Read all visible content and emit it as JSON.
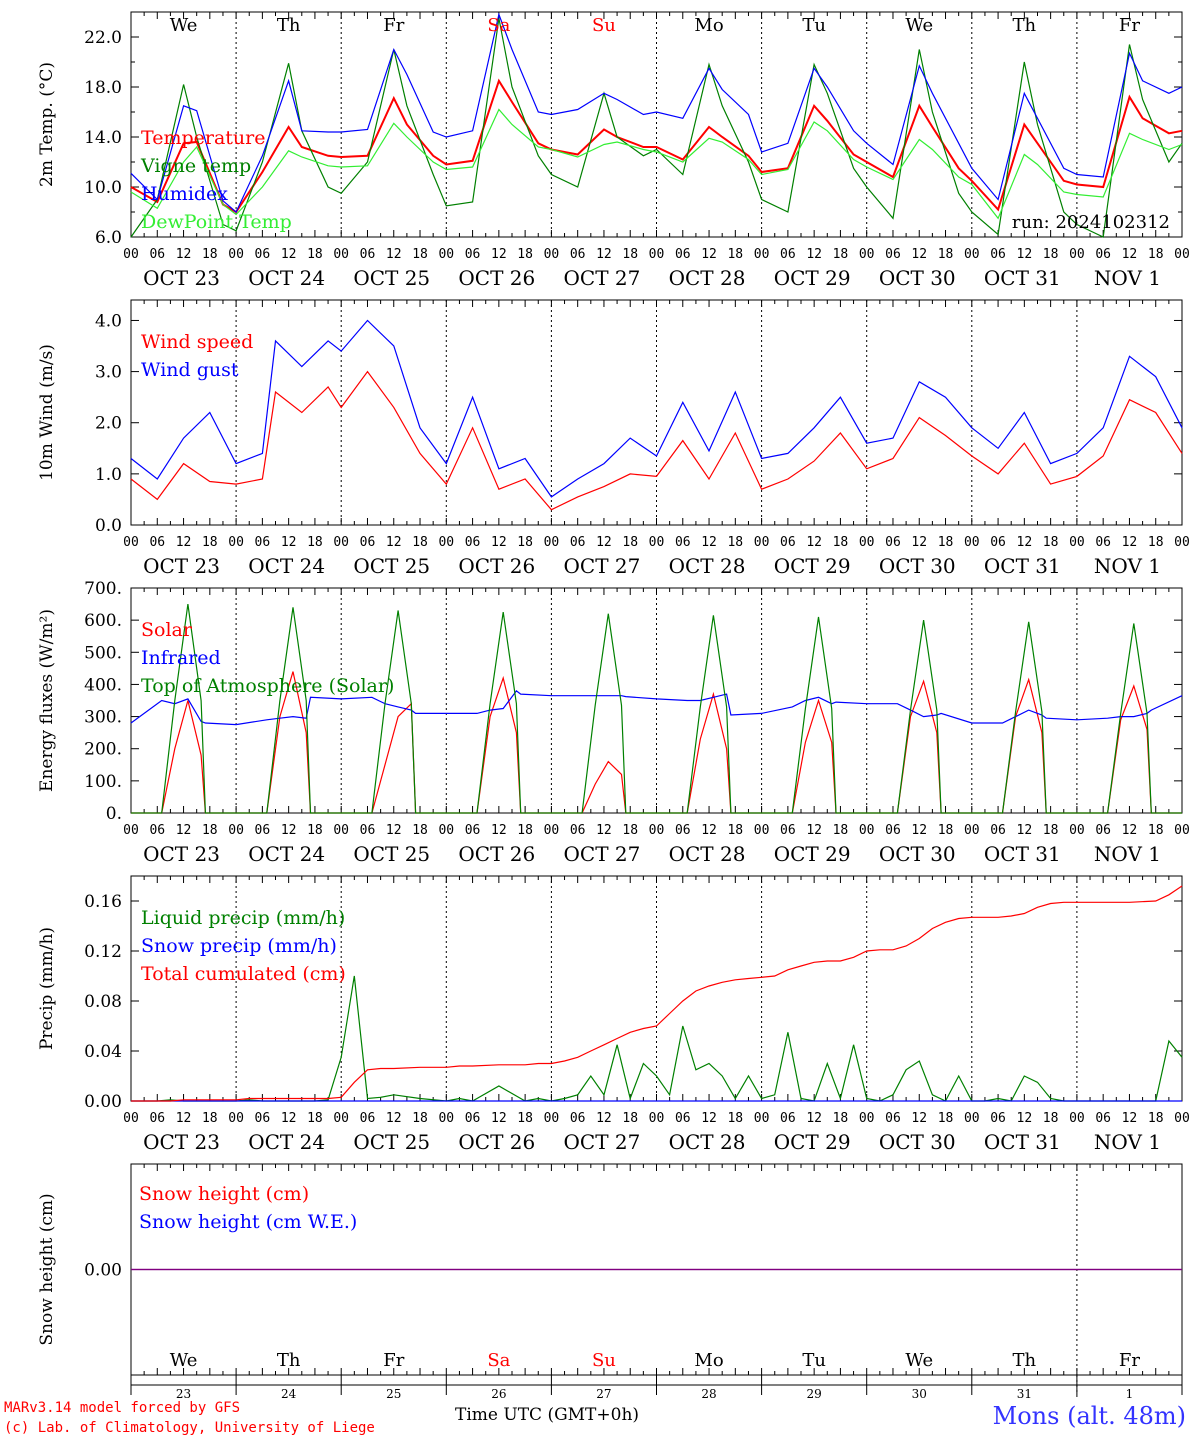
{
  "footer": {
    "model_line": "MARv3.14 model forced by GFS",
    "credit_line": "(c) Lab. of Climatology, University of Liege",
    "axis_title": "Time UTC (GMT+0h)",
    "location": "Mons (alt. 48m)"
  },
  "colors": {
    "red": "#ff0000",
    "green": "#008000",
    "blue": "#0000ff",
    "lightgreen": "#33ee33",
    "purple": "#800080"
  },
  "chart_data": [
    {
      "id": "temp",
      "type": "line",
      "ylabel": "2m Temp. (°C)",
      "ylim": [
        6,
        24
      ],
      "yticks": [
        6,
        10,
        14,
        18,
        22
      ],
      "ytick_labels": [
        "6.0",
        "10.0",
        "14.0",
        "18.0",
        "22.0"
      ],
      "annotation": "run: 2024102312",
      "day_names": [
        "We",
        "Th",
        "Fr",
        "Sa",
        "Su",
        "Mo",
        "Tu",
        "We",
        "Th",
        "Fr"
      ],
      "x_hours": [
        0,
        6,
        12,
        15,
        21,
        24,
        30,
        36,
        39,
        45,
        48,
        54,
        60,
        63,
        69,
        72,
        78,
        84,
        87,
        93,
        96,
        102,
        108,
        111,
        117,
        120,
        126,
        132,
        135,
        141,
        144,
        150,
        156,
        159,
        165,
        168,
        174,
        180,
        183,
        189,
        192,
        198,
        204,
        207,
        213,
        216,
        222,
        228,
        231,
        237,
        240
      ],
      "series": [
        {
          "name": "Temperature",
          "color": "#ff0000",
          "values": [
            10.0,
            8.8,
            13.5,
            13.6,
            8.6,
            8.0,
            11.2,
            14.8,
            13.2,
            12.5,
            12.4,
            12.5,
            17.1,
            15.0,
            12.5,
            11.8,
            12.1,
            18.5,
            16.8,
            13.5,
            13.0,
            12.6,
            14.6,
            14.0,
            13.2,
            13.2,
            12.2,
            14.8,
            14.0,
            12.5,
            11.2,
            11.5,
            16.5,
            15.3,
            12.6,
            12.0,
            10.8,
            16.5,
            14.8,
            11.5,
            10.5,
            8.2,
            15.0,
            13.5,
            10.5,
            10.2,
            10.0,
            17.2,
            15.5,
            14.3,
            14.5
          ]
        },
        {
          "name": "Vigne temp",
          "color": "#008000",
          "values": [
            6.0,
            9.0,
            18.2,
            14.0,
            7.0,
            6.5,
            12.0,
            19.9,
            14.5,
            10.0,
            9.5,
            12.0,
            21.0,
            16.5,
            11.0,
            8.5,
            8.8,
            23.5,
            18.0,
            12.5,
            11.0,
            10.0,
            17.5,
            14.0,
            12.5,
            13.0,
            11.0,
            19.8,
            16.5,
            12.0,
            9.0,
            8.0,
            19.8,
            17.5,
            11.5,
            10.0,
            7.5,
            21.0,
            16.0,
            9.5,
            8.0,
            6.2,
            20.0,
            15.0,
            8.0,
            7.0,
            6.0,
            21.4,
            17.0,
            12.0,
            13.5
          ]
        },
        {
          "name": "Humidex",
          "color": "#0000ff",
          "values": [
            11.1,
            9.0,
            16.5,
            16.1,
            8.9,
            8.0,
            12.5,
            18.5,
            14.5,
            14.4,
            14.4,
            14.6,
            21.0,
            19.0,
            14.4,
            14.0,
            14.5,
            23.8,
            21.0,
            16.0,
            15.8,
            16.2,
            17.5,
            17.0,
            15.8,
            16.0,
            15.5,
            19.5,
            17.8,
            15.8,
            12.8,
            13.5,
            19.5,
            18.0,
            14.5,
            13.5,
            11.8,
            19.7,
            17.5,
            13.5,
            11.5,
            9.0,
            17.5,
            15.5,
            11.5,
            11.0,
            10.8,
            20.7,
            18.5,
            17.5,
            18.0
          ]
        },
        {
          "name": "DewPoint Temp",
          "color": "#33ee33",
          "values": [
            9.6,
            8.3,
            12.0,
            13.2,
            8.6,
            7.8,
            10.0,
            12.9,
            12.4,
            11.7,
            11.6,
            11.7,
            15.1,
            14.0,
            12.0,
            11.4,
            11.6,
            16.2,
            15.0,
            13.2,
            13.0,
            12.4,
            13.4,
            13.6,
            13.0,
            12.8,
            12.0,
            13.9,
            13.6,
            12.2,
            11.0,
            11.4,
            15.2,
            14.5,
            12.2,
            11.6,
            10.6,
            13.8,
            13.0,
            10.8,
            10.2,
            7.5,
            12.6,
            11.8,
            9.6,
            9.4,
            9.2,
            14.3,
            13.8,
            13.0,
            13.4
          ]
        }
      ]
    },
    {
      "id": "wind",
      "type": "line",
      "ylabel": "10m Wind (m/s)",
      "ylim": [
        0,
        4.4
      ],
      "yticks": [
        0,
        1,
        2,
        3,
        4
      ],
      "ytick_labels": [
        "0.0",
        "1.0",
        "2.0",
        "3.0",
        "4.0"
      ],
      "x_hours": [
        0,
        6,
        12,
        18,
        24,
        30,
        33,
        39,
        45,
        48,
        54,
        60,
        66,
        72,
        78,
        84,
        90,
        96,
        102,
        108,
        114,
        120,
        126,
        132,
        138,
        144,
        150,
        156,
        162,
        168,
        174,
        180,
        186,
        192,
        198,
        204,
        210,
        216,
        222,
        228,
        234,
        240
      ],
      "series": [
        {
          "name": "Wind speed",
          "color": "#ff0000",
          "values": [
            0.9,
            0.5,
            1.2,
            0.85,
            0.8,
            0.9,
            2.6,
            2.2,
            2.7,
            2.3,
            3.0,
            2.3,
            1.4,
            0.8,
            1.9,
            0.7,
            0.9,
            0.3,
            0.55,
            0.75,
            1.0,
            0.95,
            1.65,
            0.9,
            1.8,
            0.7,
            0.9,
            1.25,
            1.8,
            1.1,
            1.3,
            2.1,
            1.75,
            1.35,
            1.0,
            1.6,
            0.8,
            0.95,
            1.35,
            2.45,
            2.2,
            1.4
          ]
        },
        {
          "name": "Wind gust",
          "color": "#0000ff",
          "values": [
            1.3,
            0.9,
            1.7,
            2.2,
            1.2,
            1.4,
            3.6,
            3.1,
            3.6,
            3.4,
            4.0,
            3.5,
            1.9,
            1.2,
            2.5,
            1.1,
            1.3,
            0.55,
            0.9,
            1.2,
            1.7,
            1.35,
            2.4,
            1.45,
            2.6,
            1.3,
            1.4,
            1.9,
            2.5,
            1.6,
            1.7,
            2.8,
            2.5,
            1.9,
            1.5,
            2.2,
            1.2,
            1.4,
            1.9,
            3.3,
            2.9,
            1.9
          ]
        }
      ]
    },
    {
      "id": "energy",
      "type": "line",
      "ylabel": "Energy fluxes (W/m²)",
      "ylim": [
        0,
        700
      ],
      "yticks": [
        0,
        100,
        200,
        300,
        400,
        500,
        600,
        700
      ],
      "ytick_labels": [
        "0.",
        "100.",
        "200.",
        "300.",
        "400.",
        "500.",
        "600.",
        "700."
      ],
      "x_hours": [
        0,
        7,
        10,
        13,
        16,
        17,
        24,
        31,
        34,
        37,
        40,
        41,
        48,
        55,
        58,
        61,
        64,
        65,
        72,
        79,
        82,
        85,
        88,
        89,
        96,
        103,
        106,
        109,
        112,
        113,
        120,
        127,
        130,
        133,
        136,
        137,
        144,
        151,
        154,
        157,
        160,
        161,
        168,
        175,
        178,
        181,
        184,
        185,
        192,
        199,
        202,
        205,
        208,
        209,
        216,
        223,
        226,
        229,
        232,
        233,
        240
      ],
      "series": [
        {
          "name": "Solar",
          "color": "#ff0000",
          "values": [
            0,
            0,
            200,
            350,
            180,
            0,
            0,
            0,
            300,
            440,
            250,
            0,
            0,
            0,
            150,
            300,
            340,
            0,
            0,
            0,
            300,
            420,
            250,
            0,
            0,
            0,
            90,
            160,
            120,
            0,
            0,
            0,
            230,
            370,
            200,
            0,
            0,
            0,
            220,
            350,
            220,
            0,
            0,
            0,
            300,
            410,
            250,
            0,
            0,
            0,
            300,
            415,
            250,
            0,
            0,
            0,
            290,
            395,
            260,
            0,
            0
          ]
        },
        {
          "name": "Infrared",
          "color": "#0000ff",
          "values": [
            280,
            350,
            340,
            355,
            285,
            280,
            275,
            290,
            295,
            300,
            295,
            360,
            355,
            360,
            340,
            330,
            320,
            310,
            310,
            310,
            320,
            325,
            380,
            370,
            365,
            365,
            365,
            365,
            365,
            362,
            355,
            350,
            350,
            360,
            370,
            305,
            310,
            330,
            350,
            360,
            340,
            345,
            340,
            340,
            320,
            300,
            305,
            310,
            280,
            280,
            300,
            320,
            305,
            295,
            290,
            295,
            300,
            300,
            310,
            320,
            365
          ]
        },
        {
          "name": "Top of Atmosphere (Solar)",
          "color": "#008000",
          "values": [
            0,
            0,
            350,
            650,
            350,
            0,
            0,
            0,
            350,
            640,
            350,
            0,
            0,
            0,
            340,
            630,
            340,
            0,
            0,
            0,
            340,
            625,
            340,
            0,
            0,
            0,
            335,
            620,
            335,
            0,
            0,
            0,
            330,
            615,
            330,
            0,
            0,
            0,
            325,
            610,
            325,
            0,
            0,
            0,
            320,
            600,
            320,
            0,
            0,
            0,
            315,
            595,
            315,
            0,
            0,
            0,
            310,
            590,
            310,
            0,
            0
          ]
        }
      ]
    },
    {
      "id": "precip",
      "type": "line",
      "ylabel": "Precip (mm/h)",
      "ylim": [
        0,
        0.18
      ],
      "yticks": [
        0,
        0.04,
        0.08,
        0.12,
        0.16
      ],
      "ytick_labels": [
        "0.00",
        "0.04",
        "0.08",
        "0.12",
        "0.16"
      ],
      "x_hours": [
        0,
        6,
        9,
        12,
        18,
        24,
        27,
        30,
        36,
        42,
        45,
        48,
        51,
        54,
        57,
        60,
        66,
        72,
        75,
        78,
        84,
        90,
        93,
        96,
        99,
        102,
        105,
        108,
        111,
        114,
        117,
        120,
        123,
        126,
        129,
        132,
        135,
        138,
        141,
        144,
        147,
        150,
        153,
        156,
        159,
        162,
        165,
        168,
        171,
        174,
        177,
        180,
        183,
        186,
        189,
        192,
        195,
        198,
        201,
        204,
        207,
        210,
        213,
        216,
        222,
        228,
        234,
        237,
        240
      ],
      "series": [
        {
          "name": "Liquid precip (mm/h)",
          "color": "#008000",
          "values": [
            0,
            0,
            0.001,
            0,
            0,
            0,
            0.001,
            0,
            0,
            0,
            0.001,
            0.035,
            0.1,
            0.002,
            0.003,
            0.005,
            0.002,
            0,
            0.002,
            0,
            0.012,
            0,
            0.002,
            0,
            0.002,
            0.005,
            0.02,
            0.005,
            0.045,
            0.002,
            0.03,
            0.02,
            0.005,
            0.06,
            0.025,
            0.03,
            0.02,
            0.002,
            0.02,
            0.002,
            0.005,
            0.055,
            0.002,
            0,
            0.03,
            0.002,
            0.045,
            0.002,
            0,
            0.005,
            0.025,
            0.032,
            0.005,
            0,
            0.02,
            0,
            0,
            0.002,
            0,
            0.02,
            0.015,
            0.002,
            0,
            0,
            0,
            0,
            0,
            0.048,
            0.035
          ]
        },
        {
          "name": "Snow precip (mm/h)",
          "color": "#0000ff",
          "values": [
            0,
            0,
            0,
            0,
            0,
            0,
            0,
            0,
            0,
            0,
            0,
            0,
            0,
            0,
            0,
            0,
            0,
            0,
            0,
            0,
            0,
            0,
            0,
            0,
            0,
            0,
            0,
            0,
            0,
            0,
            0,
            0,
            0,
            0,
            0,
            0,
            0,
            0,
            0,
            0,
            0,
            0,
            0,
            0,
            0,
            0,
            0,
            0,
            0,
            0,
            0,
            0,
            0,
            0,
            0,
            0,
            0,
            0,
            0,
            0,
            0,
            0,
            0,
            0,
            0,
            0,
            0,
            0,
            0
          ]
        },
        {
          "name": "Total cumulated (cm)",
          "color": "#ff0000",
          "values": [
            0,
            0,
            0,
            0.001,
            0.001,
            0.001,
            0.002,
            0.002,
            0.002,
            0.002,
            0.002,
            0.003,
            0.015,
            0.025,
            0.026,
            0.026,
            0.027,
            0.027,
            0.028,
            0.028,
            0.029,
            0.029,
            0.03,
            0.03,
            0.032,
            0.035,
            0.04,
            0.045,
            0.05,
            0.055,
            0.058,
            0.06,
            0.07,
            0.08,
            0.088,
            0.092,
            0.095,
            0.097,
            0.098,
            0.099,
            0.1,
            0.105,
            0.108,
            0.111,
            0.112,
            0.112,
            0.115,
            0.12,
            0.121,
            0.121,
            0.124,
            0.13,
            0.138,
            0.143,
            0.146,
            0.147,
            0.147,
            0.147,
            0.148,
            0.15,
            0.155,
            0.158,
            0.159,
            0.159,
            0.159,
            0.159,
            0.16,
            0.165,
            0.172
          ]
        }
      ]
    },
    {
      "id": "snow",
      "type": "line",
      "ylabel": "Snow height (cm)",
      "ylim": [
        -1,
        1
      ],
      "yticks": [
        0
      ],
      "ytick_labels": [
        "0.00"
      ],
      "x_hours": [
        0,
        240
      ],
      "day_names": [
        "We",
        "Th",
        "Fr",
        "Sa",
        "Su",
        "Mo",
        "Tu",
        "We",
        "Th",
        "Fr"
      ],
      "day_numbers": [
        "23",
        "24",
        "25",
        "26",
        "27",
        "28",
        "29",
        "30",
        "31",
        "1"
      ],
      "series": [
        {
          "name": "Snow height (cm)",
          "color": "#ff0000",
          "values": [
            0,
            0
          ]
        },
        {
          "name": "Snow height (cm W.E.)",
          "color": "#0000ff",
          "values": [
            0,
            0
          ]
        }
      ]
    }
  ],
  "x_axis": {
    "hour_labels": [
      "00",
      "06",
      "12",
      "18"
    ],
    "date_labels": [
      "OCT 23",
      "OCT 24",
      "OCT 25",
      "OCT 26",
      "OCT 27",
      "OCT 28",
      "OCT 29",
      "OCT 30",
      "OCT 31",
      "NOV  1"
    ],
    "last_hour_label": "00"
  }
}
